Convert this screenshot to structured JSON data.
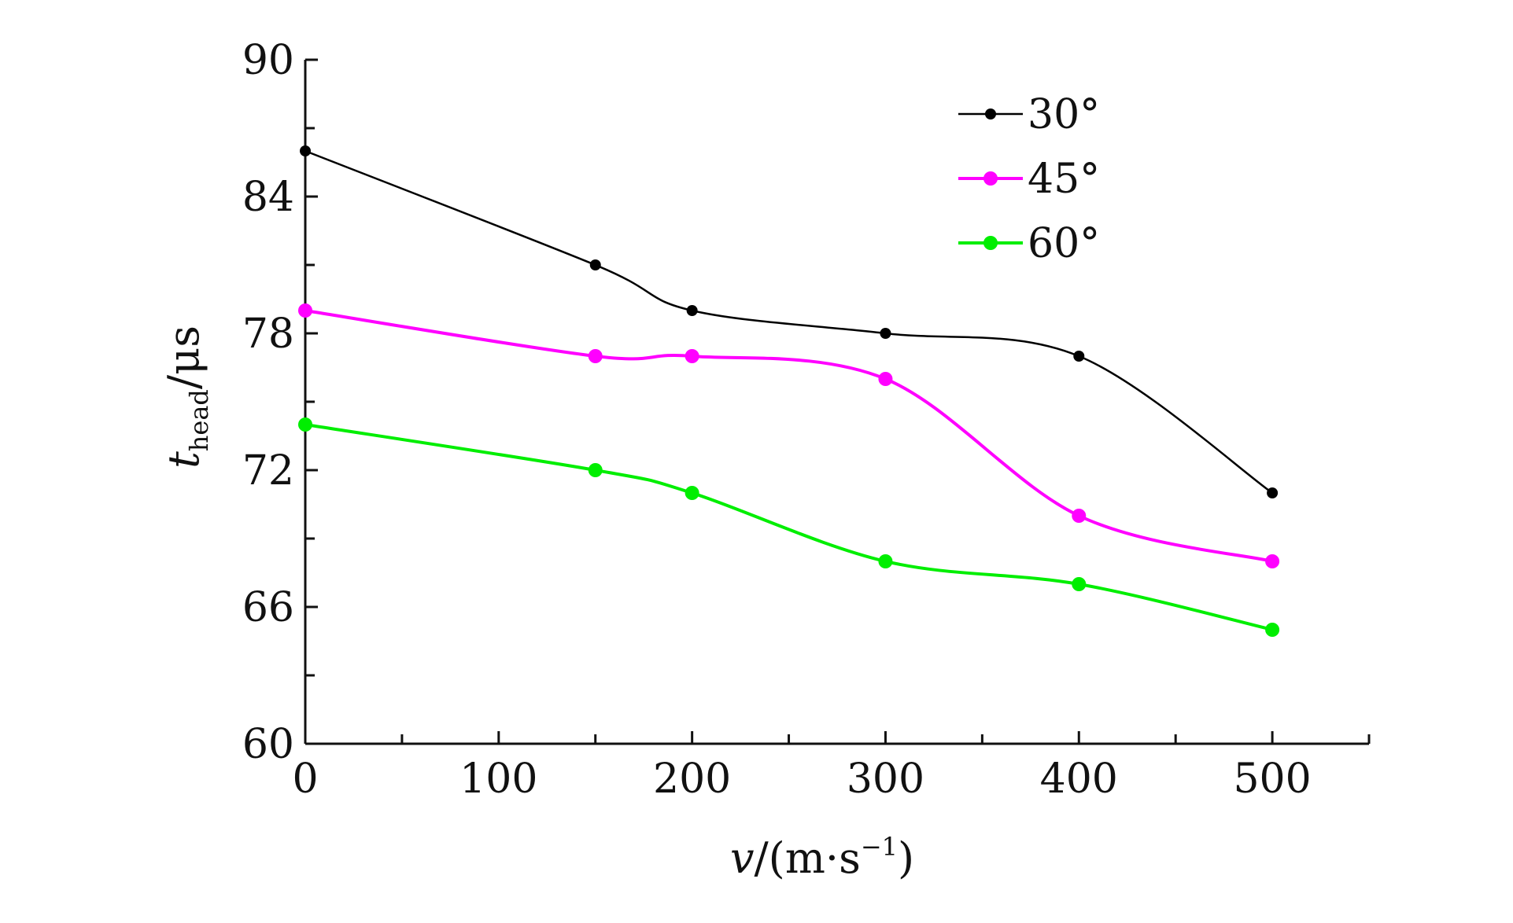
{
  "chart_data": {
    "type": "line",
    "title": "",
    "xlabel": {
      "main": "v",
      "rest_open": "/(m",
      "dot": "·",
      "unit": "s",
      "exp": "−1",
      "close": ")"
    },
    "ylabel": {
      "main": "t",
      "sub": "head",
      "unit": "/μs"
    },
    "xlim": [
      0,
      550
    ],
    "ylim": [
      60,
      90
    ],
    "x_ticks": [
      0,
      100,
      200,
      300,
      400,
      500
    ],
    "x_tick_labels": [
      "0",
      "100",
      "200",
      "300",
      "400",
      "500"
    ],
    "x_minor_ticks": [
      50,
      150,
      250,
      350,
      450,
      550
    ],
    "y_ticks": [
      60,
      66,
      72,
      78,
      84,
      90
    ],
    "y_tick_labels": [
      "60",
      "66",
      "72",
      "78",
      "84",
      "90"
    ],
    "y_minor_ticks": [
      63,
      69,
      75,
      81,
      87
    ],
    "grid": false,
    "legend_position": "top-right",
    "x": [
      0,
      150,
      200,
      300,
      400,
      500
    ],
    "series": [
      {
        "name": "30°",
        "color": "#000000",
        "values": [
          86,
          81,
          79,
          78,
          77,
          71
        ]
      },
      {
        "name": "45°",
        "color": "#ff00ff",
        "values": [
          79,
          77,
          77,
          76,
          70,
          68
        ]
      },
      {
        "name": "60°",
        "color": "#00ee00",
        "values": [
          74,
          72,
          71,
          68,
          67,
          65
        ]
      }
    ]
  }
}
